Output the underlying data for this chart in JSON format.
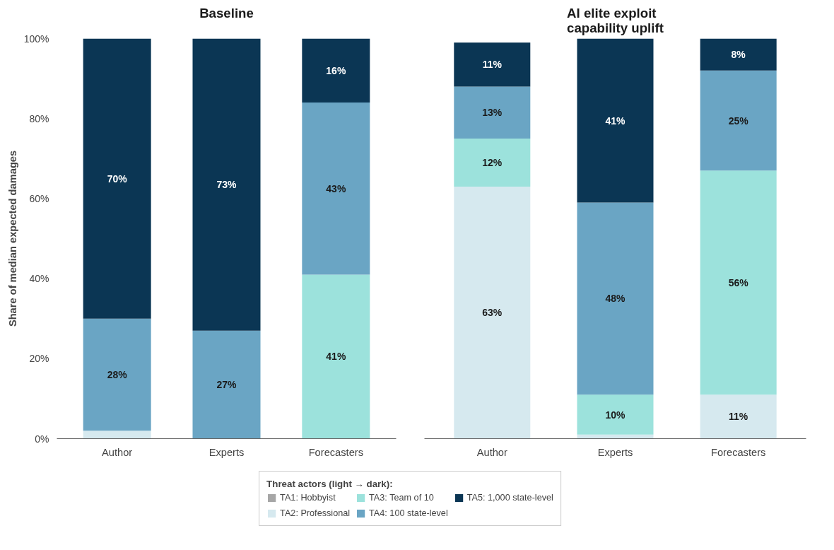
{
  "chart_data": [
    {
      "type": "bar",
      "stacked": true,
      "title": "Baseline",
      "ylabel": "Share of median expected damages",
      "categories": [
        "Author",
        "Experts",
        "Forecasters"
      ],
      "ylim": [
        0,
        100
      ],
      "yticks": [
        {
          "value": 0,
          "label": "0%"
        },
        {
          "value": 20,
          "label": "20%"
        },
        {
          "value": 40,
          "label": "40%"
        },
        {
          "value": 60,
          "label": "60%"
        },
        {
          "value": 80,
          "label": "80%"
        },
        {
          "value": 100,
          "label": "100%"
        }
      ],
      "grid": false,
      "legend": "bottom",
      "legend_title": "Threat actors (light → dark):",
      "series": [
        {
          "name": "TA1: Hobbyist",
          "color": "#a6a6a6",
          "values": [
            0,
            0,
            0
          ]
        },
        {
          "name": "TA2: Professional",
          "color": "#d6e9ef",
          "values": [
            2,
            0,
            0
          ],
          "value_labels": [
            null,
            null,
            null
          ]
        },
        {
          "name": "TA3: Team of 10",
          "color": "#9ce2dc",
          "values": [
            0,
            0,
            41
          ],
          "value_labels": [
            null,
            null,
            "41%"
          ]
        },
        {
          "name": "TA4: 100 state-level",
          "color": "#6aa5c4",
          "values": [
            28,
            27,
            43
          ],
          "value_labels": [
            "28%",
            "27%",
            "43%"
          ]
        },
        {
          "name": "TA5: 1,000 state-level",
          "color": "#0b3654",
          "values": [
            70,
            73,
            16
          ],
          "value_labels": [
            "70%",
            "73%",
            "16%"
          ]
        }
      ]
    },
    {
      "type": "bar",
      "stacked": true,
      "title": "AI elite exploit\ncapability uplift",
      "categories": [
        "Author",
        "Experts",
        "Forecasters"
      ],
      "ylim": [
        0,
        100
      ],
      "tick_labels": "x",
      "grid": false,
      "series": [
        {
          "color": "#a6a6a6",
          "values": [
            0,
            0,
            0
          ]
        },
        {
          "color": "#d6e9ef",
          "values": [
            63,
            1,
            11
          ],
          "value_labels": [
            "63%",
            null,
            "11%"
          ]
        },
        {
          "color": "#9ce2dc",
          "values": [
            12,
            10,
            56
          ],
          "value_labels": [
            "12%",
            "10%",
            "56%"
          ]
        },
        {
          "color": "#6aa5c4",
          "values": [
            13,
            48,
            25
          ],
          "value_labels": [
            "13%",
            "48%",
            "25%"
          ]
        },
        {
          "color": "#0b3654",
          "values": [
            11,
            41,
            8
          ],
          "value_labels": [
            "11%",
            "41%",
            "8%"
          ]
        }
      ]
    }
  ]
}
